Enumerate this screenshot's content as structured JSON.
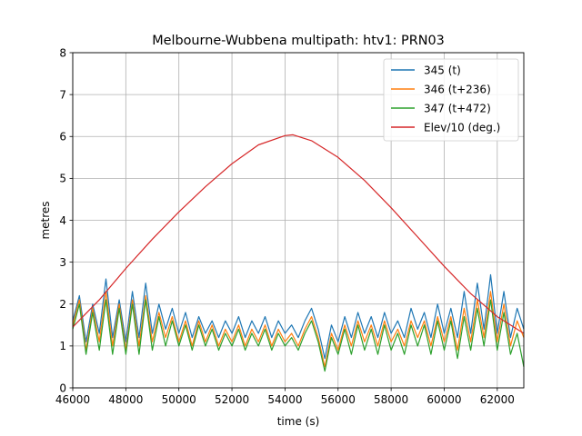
{
  "chart_data": {
    "type": "line",
    "title": "Melbourne-Wubbena multipath: htv1: PRN03",
    "xlabel": "time (s)",
    "ylabel": "metres",
    "xlim": [
      46000,
      63000
    ],
    "ylim": [
      0,
      8
    ],
    "xticks": [
      46000,
      48000,
      50000,
      52000,
      54000,
      56000,
      58000,
      60000,
      62000
    ],
    "yticks": [
      0,
      1,
      2,
      3,
      4,
      5,
      6,
      7,
      8
    ],
    "grid": true,
    "legend_position": "top-right",
    "series": [
      {
        "name": "345 (t)",
        "color": "#1f77b4",
        "points": [
          [
            46000,
            1.6
          ],
          [
            46250,
            2.2
          ],
          [
            46500,
            1.1
          ],
          [
            46750,
            2.0
          ],
          [
            47000,
            1.3
          ],
          [
            47250,
            2.6
          ],
          [
            47500,
            1.2
          ],
          [
            47750,
            2.1
          ],
          [
            48000,
            1.1
          ],
          [
            48250,
            2.3
          ],
          [
            48500,
            1.2
          ],
          [
            48750,
            2.5
          ],
          [
            49000,
            1.3
          ],
          [
            49250,
            2.0
          ],
          [
            49500,
            1.4
          ],
          [
            49750,
            1.9
          ],
          [
            50000,
            1.3
          ],
          [
            50250,
            1.8
          ],
          [
            50500,
            1.2
          ],
          [
            50750,
            1.7
          ],
          [
            51000,
            1.3
          ],
          [
            51250,
            1.6
          ],
          [
            51500,
            1.2
          ],
          [
            51750,
            1.6
          ],
          [
            52000,
            1.3
          ],
          [
            52250,
            1.7
          ],
          [
            52500,
            1.2
          ],
          [
            52750,
            1.6
          ],
          [
            53000,
            1.3
          ],
          [
            53250,
            1.7
          ],
          [
            53500,
            1.2
          ],
          [
            53750,
            1.6
          ],
          [
            54000,
            1.3
          ],
          [
            54250,
            1.5
          ],
          [
            54500,
            1.2
          ],
          [
            54750,
            1.6
          ],
          [
            55000,
            1.9
          ],
          [
            55250,
            1.4
          ],
          [
            55500,
            0.7
          ],
          [
            55750,
            1.5
          ],
          [
            56000,
            1.1
          ],
          [
            56250,
            1.7
          ],
          [
            56500,
            1.2
          ],
          [
            56750,
            1.8
          ],
          [
            57000,
            1.3
          ],
          [
            57250,
            1.7
          ],
          [
            57500,
            1.2
          ],
          [
            57750,
            1.8
          ],
          [
            58000,
            1.3
          ],
          [
            58250,
            1.6
          ],
          [
            58500,
            1.2
          ],
          [
            58750,
            1.9
          ],
          [
            59000,
            1.4
          ],
          [
            59250,
            1.8
          ],
          [
            59500,
            1.2
          ],
          [
            59750,
            2.0
          ],
          [
            60000,
            1.3
          ],
          [
            60250,
            1.9
          ],
          [
            60500,
            1.2
          ],
          [
            60750,
            2.3
          ],
          [
            61000,
            1.3
          ],
          [
            61250,
            2.5
          ],
          [
            61500,
            1.4
          ],
          [
            61750,
            2.7
          ],
          [
            62000,
            1.3
          ],
          [
            62250,
            2.3
          ],
          [
            62500,
            1.2
          ],
          [
            62750,
            1.9
          ],
          [
            63000,
            1.4
          ]
        ]
      },
      {
        "name": "346 (t+236)",
        "color": "#ff7f0e",
        "points": [
          [
            46000,
            1.5
          ],
          [
            46250,
            2.1
          ],
          [
            46500,
            0.9
          ],
          [
            46750,
            1.9
          ],
          [
            47000,
            1.1
          ],
          [
            47250,
            2.3
          ],
          [
            47500,
            1.0
          ],
          [
            47750,
            2.0
          ],
          [
            48000,
            0.9
          ],
          [
            48250,
            2.1
          ],
          [
            48500,
            1.0
          ],
          [
            48750,
            2.2
          ],
          [
            49000,
            1.1
          ],
          [
            49250,
            1.8
          ],
          [
            49500,
            1.2
          ],
          [
            49750,
            1.7
          ],
          [
            50000,
            1.1
          ],
          [
            50250,
            1.6
          ],
          [
            50500,
            1.0
          ],
          [
            50750,
            1.6
          ],
          [
            51000,
            1.1
          ],
          [
            51250,
            1.5
          ],
          [
            51500,
            1.0
          ],
          [
            51750,
            1.4
          ],
          [
            52000,
            1.1
          ],
          [
            52250,
            1.5
          ],
          [
            52500,
            1.0
          ],
          [
            52750,
            1.4
          ],
          [
            53000,
            1.1
          ],
          [
            53250,
            1.5
          ],
          [
            53500,
            1.0
          ],
          [
            53750,
            1.4
          ],
          [
            54000,
            1.1
          ],
          [
            54250,
            1.3
          ],
          [
            54500,
            1.0
          ],
          [
            54750,
            1.4
          ],
          [
            55000,
            1.7
          ],
          [
            55250,
            1.2
          ],
          [
            55500,
            0.5
          ],
          [
            55750,
            1.3
          ],
          [
            56000,
            0.9
          ],
          [
            56250,
            1.5
          ],
          [
            56500,
            1.0
          ],
          [
            56750,
            1.6
          ],
          [
            57000,
            1.1
          ],
          [
            57250,
            1.5
          ],
          [
            57500,
            1.0
          ],
          [
            57750,
            1.6
          ],
          [
            58000,
            1.1
          ],
          [
            58250,
            1.4
          ],
          [
            58500,
            1.0
          ],
          [
            58750,
            1.6
          ],
          [
            59000,
            1.2
          ],
          [
            59250,
            1.6
          ],
          [
            59500,
            1.0
          ],
          [
            59750,
            1.7
          ],
          [
            60000,
            1.1
          ],
          [
            60250,
            1.7
          ],
          [
            60500,
            0.9
          ],
          [
            60750,
            1.9
          ],
          [
            61000,
            1.1
          ],
          [
            61250,
            2.1
          ],
          [
            61500,
            1.2
          ],
          [
            61750,
            2.3
          ],
          [
            62000,
            1.1
          ],
          [
            62250,
            2.0
          ],
          [
            62500,
            1.0
          ],
          [
            62750,
            1.6
          ],
          [
            63000,
            1.2
          ]
        ]
      },
      {
        "name": "347 (t+472)",
        "color": "#2ca02c",
        "points": [
          [
            46000,
            1.4
          ],
          [
            46250,
            2.0
          ],
          [
            46500,
            0.8
          ],
          [
            46750,
            1.8
          ],
          [
            47000,
            0.9
          ],
          [
            47250,
            2.1
          ],
          [
            47500,
            0.8
          ],
          [
            47750,
            1.9
          ],
          [
            48000,
            0.8
          ],
          [
            48250,
            2.0
          ],
          [
            48500,
            0.8
          ],
          [
            48750,
            2.1
          ],
          [
            49000,
            0.9
          ],
          [
            49250,
            1.7
          ],
          [
            49500,
            1.0
          ],
          [
            49750,
            1.6
          ],
          [
            50000,
            1.0
          ],
          [
            50250,
            1.5
          ],
          [
            50500,
            0.9
          ],
          [
            50750,
            1.5
          ],
          [
            51000,
            1.0
          ],
          [
            51250,
            1.4
          ],
          [
            51500,
            0.9
          ],
          [
            51750,
            1.3
          ],
          [
            52000,
            1.0
          ],
          [
            52250,
            1.4
          ],
          [
            52500,
            0.9
          ],
          [
            52750,
            1.3
          ],
          [
            53000,
            1.0
          ],
          [
            53250,
            1.4
          ],
          [
            53500,
            0.9
          ],
          [
            53750,
            1.3
          ],
          [
            54000,
            1.0
          ],
          [
            54250,
            1.2
          ],
          [
            54500,
            0.9
          ],
          [
            54750,
            1.3
          ],
          [
            55000,
            1.6
          ],
          [
            55250,
            1.1
          ],
          [
            55500,
            0.4
          ],
          [
            55750,
            1.2
          ],
          [
            56000,
            0.8
          ],
          [
            56250,
            1.4
          ],
          [
            56500,
            0.8
          ],
          [
            56750,
            1.5
          ],
          [
            57000,
            0.9
          ],
          [
            57250,
            1.4
          ],
          [
            57500,
            0.8
          ],
          [
            57750,
            1.5
          ],
          [
            58000,
            0.9
          ],
          [
            58250,
            1.3
          ],
          [
            58500,
            0.8
          ],
          [
            58750,
            1.5
          ],
          [
            59000,
            1.0
          ],
          [
            59250,
            1.5
          ],
          [
            59500,
            0.8
          ],
          [
            59750,
            1.6
          ],
          [
            60000,
            0.9
          ],
          [
            60250,
            1.6
          ],
          [
            60500,
            0.7
          ],
          [
            60750,
            1.7
          ],
          [
            61000,
            0.9
          ],
          [
            61250,
            1.9
          ],
          [
            61500,
            1.0
          ],
          [
            61750,
            2.1
          ],
          [
            62000,
            0.9
          ],
          [
            62250,
            1.8
          ],
          [
            62500,
            0.8
          ],
          [
            62750,
            1.3
          ],
          [
            63000,
            0.5
          ]
        ]
      },
      {
        "name": "Elev/10 (deg.)",
        "color": "#d62728",
        "points": [
          [
            46000,
            1.45
          ],
          [
            47000,
            2.1
          ],
          [
            48000,
            2.85
          ],
          [
            49000,
            3.55
          ],
          [
            50000,
            4.2
          ],
          [
            51000,
            4.8
          ],
          [
            52000,
            5.35
          ],
          [
            53000,
            5.8
          ],
          [
            54000,
            6.02
          ],
          [
            54300,
            6.04
          ],
          [
            55000,
            5.9
          ],
          [
            56000,
            5.5
          ],
          [
            57000,
            4.95
          ],
          [
            58000,
            4.3
          ],
          [
            59000,
            3.6
          ],
          [
            60000,
            2.9
          ],
          [
            61000,
            2.25
          ],
          [
            62000,
            1.7
          ],
          [
            63000,
            1.3
          ]
        ]
      }
    ]
  }
}
